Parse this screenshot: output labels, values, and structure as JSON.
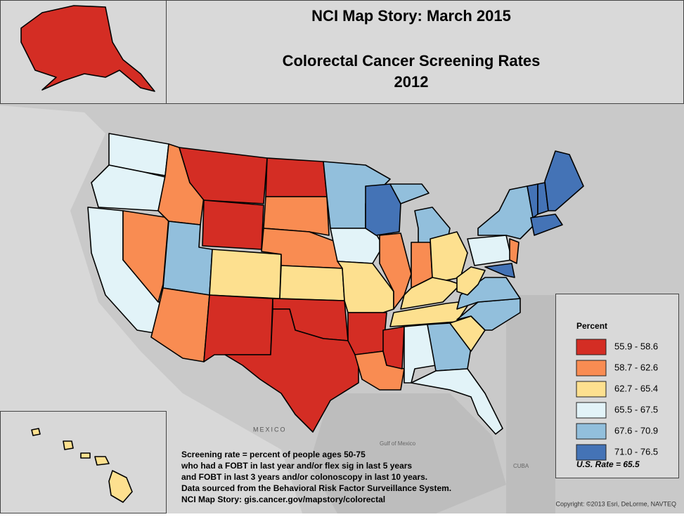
{
  "title": "NCI Map Story: March 2015",
  "subtitle": [
    "Colorectal Cancer Screening Rates",
    "2012"
  ],
  "legend": {
    "title": "Percent",
    "items": [
      {
        "label": "55.9 - 58.6",
        "color": "#d42d24"
      },
      {
        "label": "58.7 - 62.6",
        "color": "#f98c52"
      },
      {
        "label": "62.7 - 65.4",
        "color": "#fde08f"
      },
      {
        "label": "65.5 - 67.5",
        "color": "#e2f3f8"
      },
      {
        "label": "67.6 - 70.9",
        "color": "#92bfdc"
      },
      {
        "label": "71.0 - 76.5",
        "color": "#4473b6"
      }
    ],
    "us_rate": "U.S. Rate = 65.5"
  },
  "notes": [
    "Screening rate = percent of people ages 50-75",
    "who had a FOBT in last year and/or flex sig in last 5 years",
    "and FOBT in last 3 years and/or colonoscopy in last 10 years.",
    "Data sourced from the Behavioral Risk Factor Surveillance System.",
    "NCI Map Story: gis.cancer.gov/mapstory/colorectal"
  ],
  "map_labels": {
    "mexico": "MEXICO",
    "gulf": "Gulf of Mexico",
    "cuba": "CUBA"
  },
  "copyright": "Copyright: ©2013 Esri, DeLorme, NAVTEQ"
}
